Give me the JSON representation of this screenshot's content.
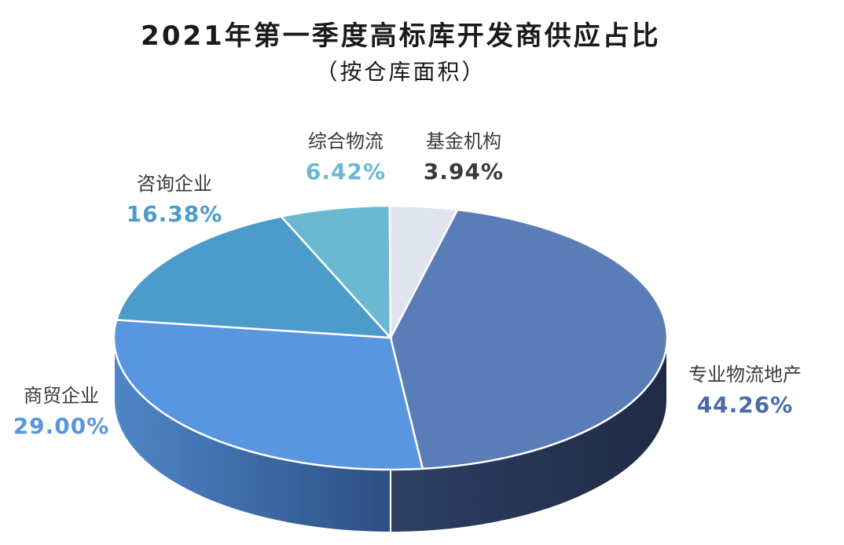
{
  "chart_data": {
    "type": "pie",
    "title": "2021年第一季度高标库开发商供应占比",
    "subtitle": "（按仓库面积）",
    "slices": [
      {
        "name": "专业物流地产",
        "value": 44.26,
        "label": "44.26%",
        "color": "#5a7db8",
        "label_color": "#4a6aaa"
      },
      {
        "name": "商贸企业",
        "value": 29.0,
        "label": "29.00%",
        "color": "#5896e0",
        "label_color": "#5896e0"
      },
      {
        "name": "咨询企业",
        "value": 16.38,
        "label": "16.38%",
        "color": "#4c9ccb",
        "label_color": "#4c9ccb"
      },
      {
        "name": "综合物流",
        "value": 6.42,
        "label": "6.42%",
        "color": "#6bb8d3",
        "label_color": "#6bb8d3"
      },
      {
        "name": "基金机构",
        "value": 3.94,
        "label": "3.94%",
        "color": "#dfe4ee",
        "label_color": "#3a3a3a"
      }
    ]
  }
}
